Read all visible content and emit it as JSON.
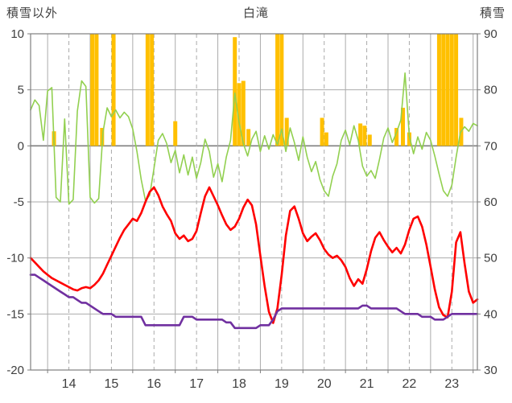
{
  "header": {
    "left_axis_title": "積雪以外",
    "title": "白滝",
    "right_axis_title": "積雪"
  },
  "colors": {
    "green": "#92d050",
    "red": "#ff0000",
    "purple": "#7030a0",
    "orange": "#ffc000",
    "grid": "#ababab",
    "grid_dark": "#7f7f7f",
    "text": "#3f3f3f"
  },
  "chart_data": {
    "type": "line",
    "title": "白滝",
    "left_axis": {
      "title": "積雪以外",
      "min": -20,
      "max": 10,
      "ticks": [
        10,
        5,
        0,
        -5,
        -10,
        -15,
        -20
      ]
    },
    "right_axis": {
      "title": "積雪",
      "min": 30,
      "max": 90,
      "ticks": [
        90,
        80,
        70,
        60,
        50,
        40,
        30
      ]
    },
    "x_axis": {
      "domain": [
        13.6,
        24.1
      ],
      "labels": [
        "14",
        "15",
        "16",
        "17",
        "18",
        "19",
        "20",
        "21",
        "22",
        "23"
      ],
      "label_positions": [
        14.5,
        15.5,
        16.5,
        17.5,
        18.5,
        19.5,
        20.5,
        21.5,
        22.5,
        23.5
      ],
      "solid_gridlines": [
        14,
        15,
        16,
        17,
        18,
        19,
        20,
        21,
        22,
        23,
        24
      ],
      "dashed_gridlines": [
        14.5,
        15.5,
        16.5,
        17.5,
        18.5,
        19.5,
        20.5,
        21.5,
        22.5,
        23.5
      ]
    },
    "series": [
      {
        "name": "series-green",
        "axis": "left",
        "color": "#92d050",
        "width": 1.6,
        "x_start": 13.6,
        "x_step": 0.1,
        "values": [
          3.2,
          4.1,
          3.6,
          0.5,
          4.9,
          5.2,
          -4.6,
          -5.0,
          2.4,
          -5.2,
          -4.8,
          3.1,
          5.8,
          5.3,
          -4.6,
          -5.1,
          -4.7,
          1.2,
          3.4,
          2.6,
          3.2,
          2.5,
          3.0,
          2.6,
          1.5,
          -0.5,
          -3.0,
          -4.9,
          -4.4,
          -2.0,
          0.5,
          1.1,
          0.2,
          -1.5,
          -0.4,
          -2.4,
          -0.8,
          -2.6,
          -1.0,
          -2.9,
          -1.5,
          0.6,
          -0.5,
          -2.8,
          -1.6,
          -3.2,
          -1.0,
          0.5,
          4.7,
          2.1,
          0.2,
          -0.9,
          0.6,
          1.3,
          -0.5,
          0.9,
          -0.3,
          1.0,
          0.1,
          1.5,
          -0.5,
          1.6,
          0.3,
          -1.3,
          0.8,
          -1.0,
          -2.3,
          -1.4,
          -3.0,
          -4.0,
          -4.5,
          -2.7,
          -1.6,
          0.5,
          1.4,
          0.1,
          1.8,
          0.5,
          -1.8,
          -2.7,
          -2.2,
          -2.9,
          -1.2,
          0.7,
          1.6,
          0.3,
          1.2,
          2.3,
          6.5,
          0.9,
          -0.7,
          0.8,
          -0.3,
          1.2,
          0.5,
          -0.9,
          -2.5,
          -4.0,
          -4.5,
          -3.5,
          -1.0,
          1.2,
          1.7,
          1.3,
          2.0,
          1.8
        ]
      },
      {
        "name": "series-red",
        "axis": "left",
        "color": "#ff0000",
        "width": 2.6,
        "x_start": 13.6,
        "x_step": 0.1,
        "values": [
          -10.0,
          -10.4,
          -10.8,
          -11.2,
          -11.5,
          -11.8,
          -12.0,
          -12.2,
          -12.4,
          -12.6,
          -12.8,
          -12.9,
          -12.7,
          -12.6,
          -12.7,
          -12.4,
          -12.0,
          -11.4,
          -10.6,
          -9.8,
          -9.0,
          -8.2,
          -7.5,
          -7.0,
          -6.5,
          -6.7,
          -6.0,
          -5.0,
          -4.1,
          -3.7,
          -4.4,
          -5.4,
          -6.1,
          -6.7,
          -7.8,
          -8.3,
          -8.0,
          -8.5,
          -8.3,
          -7.6,
          -6.0,
          -4.5,
          -3.7,
          -4.5,
          -5.3,
          -6.2,
          -7.0,
          -7.5,
          -7.2,
          -6.5,
          -5.5,
          -4.8,
          -5.3,
          -7.0,
          -9.8,
          -12.5,
          -14.8,
          -15.8,
          -14.5,
          -11.5,
          -8.0,
          -5.8,
          -5.4,
          -6.5,
          -7.8,
          -8.5,
          -8.1,
          -7.8,
          -8.4,
          -9.2,
          -9.7,
          -10.0,
          -9.8,
          -10.2,
          -10.8,
          -11.8,
          -12.5,
          -11.9,
          -12.3,
          -11.0,
          -9.4,
          -8.2,
          -7.7,
          -8.4,
          -9.0,
          -9.5,
          -9.1,
          -9.6,
          -8.8,
          -7.5,
          -6.5,
          -6.3,
          -7.2,
          -8.8,
          -10.8,
          -12.8,
          -14.4,
          -15.1,
          -15.3,
          -13.0,
          -8.6,
          -7.7,
          -10.5,
          -13.0,
          -14.0,
          -13.7
        ]
      },
      {
        "name": "series-purple-snow-depth",
        "axis": "right",
        "color": "#7030a0",
        "width": 2.6,
        "x_start": 13.6,
        "x_step": 0.1,
        "values": [
          47,
          47,
          46.5,
          46,
          45.5,
          45,
          44.5,
          44,
          43.5,
          43,
          43,
          42.5,
          42,
          42,
          41.5,
          41,
          40.5,
          40,
          40,
          40,
          39.5,
          39.5,
          39.5,
          39.5,
          39.5,
          39.5,
          39.5,
          38,
          38,
          38,
          38,
          38,
          38,
          38,
          38,
          38,
          39.5,
          39.5,
          39.5,
          39,
          39,
          39,
          39,
          39,
          39,
          39,
          38.5,
          38.5,
          37.5,
          37.5,
          37.5,
          37.5,
          37.5,
          37.5,
          38,
          38,
          38,
          39,
          40.5,
          41,
          41,
          41,
          41,
          41,
          41,
          41,
          41,
          41,
          41,
          41,
          41,
          41,
          41,
          41,
          41,
          41,
          41,
          41,
          41.5,
          41.5,
          41,
          41,
          41,
          41,
          41,
          41,
          41,
          40.5,
          40,
          40,
          40,
          40,
          39.5,
          39.5,
          39.5,
          39,
          39,
          39,
          39.5,
          40,
          40,
          40,
          40,
          40,
          40,
          40
        ]
      }
    ],
    "bars": {
      "name": "orange-bars",
      "axis": "left",
      "color": "#ffc000",
      "baseline": 0,
      "clip_max": 10,
      "points": [
        [
          14.15,
          1.3
        ],
        [
          15.05,
          10
        ],
        [
          15.15,
          10
        ],
        [
          15.28,
          1.6
        ],
        [
          15.55,
          10
        ],
        [
          16.35,
          10
        ],
        [
          16.45,
          10
        ],
        [
          17.0,
          2.2
        ],
        [
          18.4,
          9.7
        ],
        [
          18.5,
          5.6
        ],
        [
          18.6,
          5.8
        ],
        [
          18.72,
          1.5
        ],
        [
          19.4,
          10
        ],
        [
          19.5,
          10
        ],
        [
          19.62,
          2.5
        ],
        [
          20.45,
          2.5
        ],
        [
          20.55,
          1.2
        ],
        [
          21.35,
          2.0
        ],
        [
          21.45,
          1.8
        ],
        [
          21.57,
          1.0
        ],
        [
          22.2,
          1.6
        ],
        [
          22.35,
          3.4
        ],
        [
          22.5,
          1.2
        ],
        [
          23.2,
          10
        ],
        [
          23.3,
          10
        ],
        [
          23.4,
          10
        ],
        [
          23.5,
          10
        ],
        [
          23.6,
          10
        ],
        [
          23.72,
          2.5
        ]
      ]
    }
  }
}
